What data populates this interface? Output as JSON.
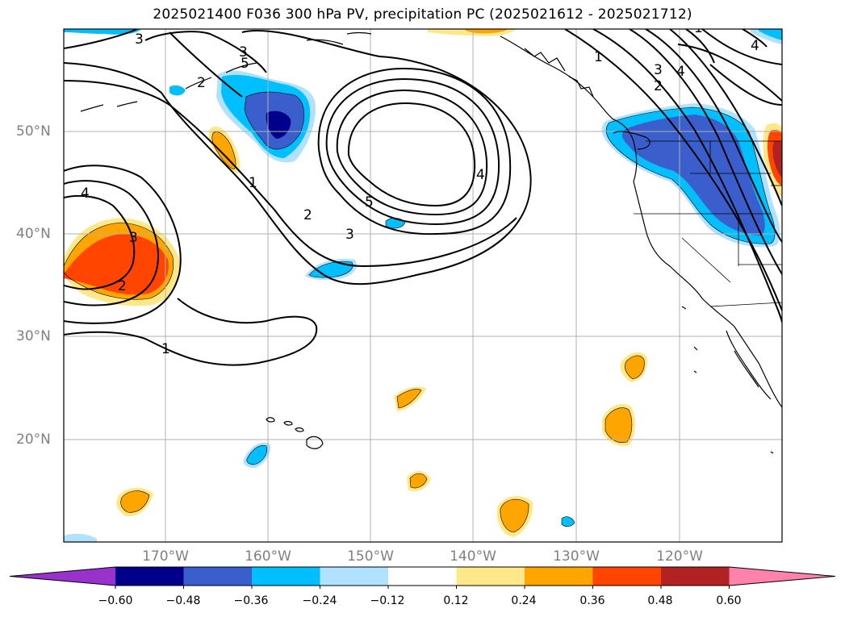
{
  "title": "2025021400 F036 300 hPa PV, precipitation PC (2025021612 - 2025021712)",
  "map": {
    "lat_labels": [
      "50°N",
      "40°N",
      "30°N",
      "20°N"
    ],
    "lon_labels": [
      "170°W",
      "160°W",
      "150°W",
      "140°W",
      "130°W",
      "120°W"
    ],
    "contour_labels": [
      "3",
      "5",
      "4",
      "1",
      "2",
      "3",
      "4",
      "3",
      "2",
      "5",
      "4",
      "3",
      "2",
      "1",
      "1",
      "4",
      "3",
      "2",
      "1"
    ]
  },
  "colorbar": {
    "labels": [
      "−0.60",
      "−0.48",
      "−0.36",
      "−0.24",
      "−0.12",
      "0.12",
      "0.24",
      "0.36",
      "0.48",
      "0.60"
    ],
    "colors": [
      "#9932CC",
      "#00008B",
      "#3A5FCD",
      "#00BFFF",
      "#B0E2FF",
      "#FFFFFF",
      "#FFE88A",
      "#FFA500",
      "#FF4500",
      "#B22222",
      "#FF82AB"
    ]
  }
}
